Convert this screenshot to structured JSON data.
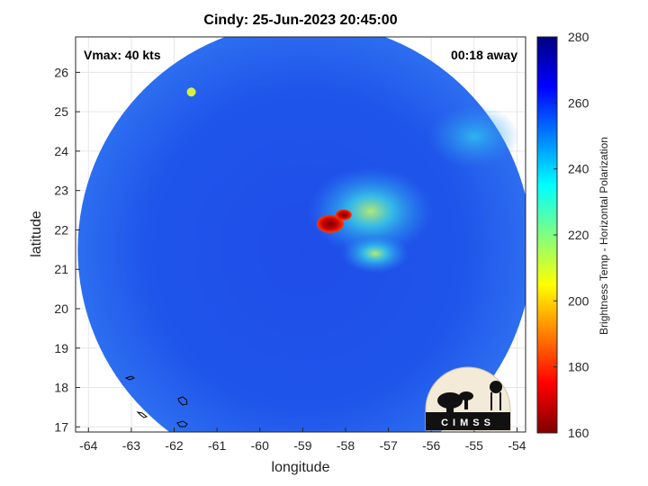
{
  "title": "Cindy: 25-Jun-2023 20:45:00",
  "annotations": {
    "vmax": "Vmax: 40 kts",
    "time_away": "00:18 away"
  },
  "x_axis": {
    "label": "longitude",
    "ticks": [
      -64,
      -63,
      -62,
      -61,
      -60,
      -59,
      -58,
      -57,
      -56,
      -55,
      -54
    ],
    "range": [
      -64.3,
      -53.8
    ]
  },
  "y_axis": {
    "label": "latitude",
    "ticks": [
      17,
      18,
      19,
      20,
      21,
      22,
      23,
      24,
      25,
      26
    ],
    "range": [
      16.87,
      26.9
    ]
  },
  "colorbar": {
    "label": "Brightness Temp - Horizontal Polarization",
    "ticks": [
      160,
      180,
      200,
      220,
      240,
      260,
      280
    ],
    "range": [
      160,
      280
    ],
    "colormap": "jet"
  },
  "logo": {
    "text": "CIMSS"
  },
  "grid": true,
  "image_features": {
    "swath": {
      "center_lon": -58.95,
      "center_lat": 21.5,
      "radius_deg": 5.3
    },
    "cold_core": {
      "lon": -58.15,
      "lat": 22.2,
      "value": 165
    },
    "background_value": 258
  },
  "colors": {
    "plot_border": "#262626",
    "grid": "#e6e6e6",
    "coast": "#000000"
  }
}
